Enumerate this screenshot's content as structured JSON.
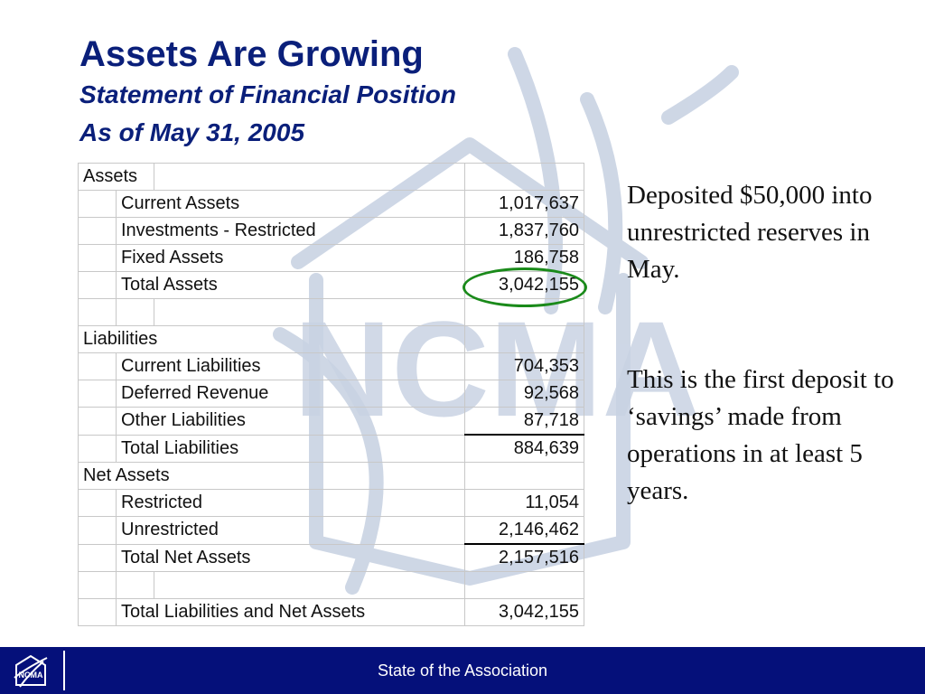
{
  "slide": {
    "title": "Assets Are Growing",
    "subtitle_line1": "Statement of Financial Position",
    "subtitle_line2": "As of May 31, 2005"
  },
  "table": {
    "assets_header": "Assets",
    "assets": [
      {
        "label": "Current Assets",
        "value": "1,017,637"
      },
      {
        "label": "Investments - Restricted",
        "value": "1,837,760"
      },
      {
        "label": "Fixed Assets",
        "value": "186,758"
      },
      {
        "label": "Total Assets",
        "value": "3,042,155"
      }
    ],
    "liabilities_header": "Liabilities",
    "liabilities": [
      {
        "label": "Current Liabilities",
        "value": "704,353"
      },
      {
        "label": "Deferred Revenue",
        "value": "92,568"
      },
      {
        "label": "Other Liabilities",
        "value": "87,718"
      },
      {
        "label": "Total Liabilities",
        "value": "884,639"
      }
    ],
    "net_assets_header": "Net Assets",
    "net_assets": [
      {
        "label": "Restricted",
        "value": "11,054"
      },
      {
        "label": "Unrestricted",
        "value": "2,146,462"
      },
      {
        "label": "Total Net Assets",
        "value": "2,157,516"
      }
    ],
    "grand_total": {
      "label": "Total Liabilities and Net Assets",
      "value": "3,042,155"
    }
  },
  "notes": {
    "note1": "Deposited $50,000 into unrestricted reserves in May.",
    "note2": "This is the first deposit to ‘savings’ made from operations in at least 5 years."
  },
  "footer": {
    "text": "State of the Association",
    "logo_text": "NCMA"
  },
  "watermark_text": "NCMA",
  "colors": {
    "title": "#0a1f7a",
    "footer_bg": "#05107a",
    "highlight": "#1a8a1a",
    "watermark": "#c9d3e3"
  }
}
